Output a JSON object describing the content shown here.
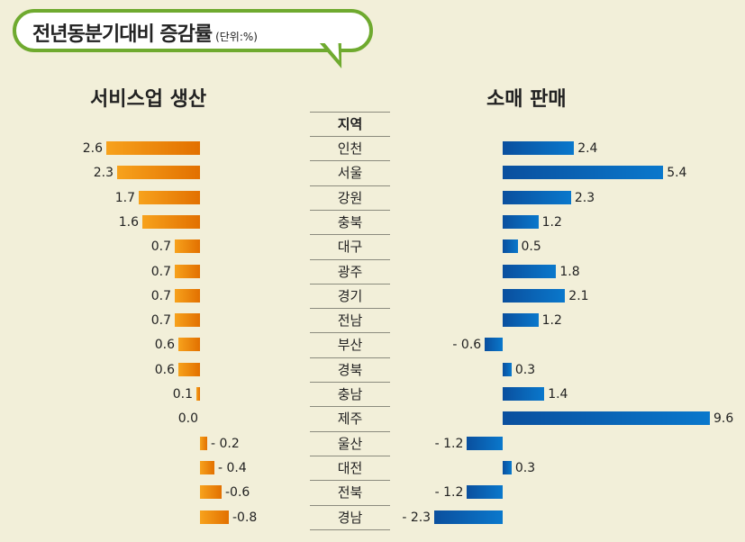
{
  "header": {
    "title": "전년동분기대비 증감률",
    "unit": "(단위:%)"
  },
  "chart_data": [
    {
      "type": "bar",
      "orientation": "horizontal",
      "title": "서비스업 생산",
      "categories_header": "지역",
      "categories": [
        "인천",
        "서울",
        "강원",
        "충북",
        "대구",
        "광주",
        "경기",
        "전남",
        "부산",
        "경북",
        "충남",
        "제주",
        "울산",
        "대전",
        "전북",
        "경남"
      ],
      "values": [
        2.6,
        2.3,
        1.7,
        1.6,
        0.7,
        0.7,
        0.7,
        0.7,
        0.6,
        0.6,
        0.1,
        0.0,
        -0.2,
        -0.4,
        -0.6,
        -0.8
      ],
      "labels": [
        "2.6",
        "2.3",
        "1.7",
        "1.6",
        "0.7",
        "0.7",
        "0.7",
        "0.7",
        "0.6",
        "0.6",
        "0.1",
        "0.0",
        "- 0.2",
        "- 0.4",
        "-0.6",
        "-0.8"
      ],
      "color": "#f08c00",
      "direction": "positive-left"
    },
    {
      "type": "bar",
      "orientation": "horizontal",
      "title": "소매 판매",
      "categories": [
        "인천",
        "서울",
        "강원",
        "충북",
        "대구",
        "광주",
        "경기",
        "전남",
        "부산",
        "경북",
        "충남",
        "제주",
        "울산",
        "대전",
        "전북",
        "경남"
      ],
      "values": [
        2.4,
        5.4,
        2.3,
        1.2,
        0.5,
        1.8,
        2.1,
        1.2,
        -0.6,
        0.3,
        1.4,
        9.6,
        -1.2,
        0.3,
        -1.2,
        -2.3
      ],
      "labels": [
        "2.4",
        "5.4",
        "2.3",
        "1.2",
        "0.5",
        "1.8",
        "2.1",
        "1.2",
        "- 0.6",
        "0.3",
        "1.4",
        "9.6",
        "- 1.2",
        "0.3",
        "- 1.2",
        "- 2.3"
      ],
      "color": "#0066b8",
      "direction": "positive-right"
    }
  ]
}
